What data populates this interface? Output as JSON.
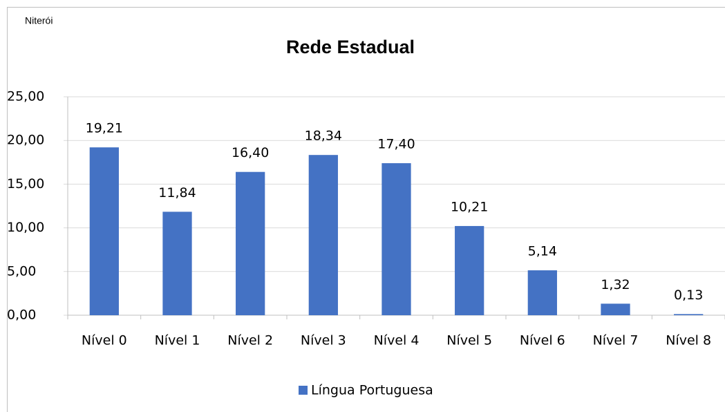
{
  "chart_data": {
    "type": "bar",
    "title": "Rede Estadual",
    "subtitle": "Niterói",
    "categories": [
      "Nível 0",
      "Nível 1",
      "Nível 2",
      "Nível 3",
      "Nível 4",
      "Nível 5",
      "Nível 6",
      "Nível 7",
      "Nível 8"
    ],
    "series": [
      {
        "name": "Língua Portuguesa",
        "color": "#4472c4",
        "values": [
          19.21,
          11.84,
          16.4,
          18.34,
          17.4,
          10.21,
          5.14,
          1.32,
          0.13
        ],
        "value_labels": [
          "19,21",
          "11,84",
          "16,40",
          "18,34",
          "17,40",
          "10,21",
          "5,14",
          "1,32",
          "0,13"
        ]
      }
    ],
    "ylim": [
      0,
      25
    ],
    "yticks": [
      {
        "value": 0,
        "label": "0,00"
      },
      {
        "value": 5,
        "label": "5,00"
      },
      {
        "value": 10,
        "label": "10,00"
      },
      {
        "value": 15,
        "label": "15,00"
      },
      {
        "value": 20,
        "label": "20,00"
      },
      {
        "value": 25,
        "label": "25,00"
      }
    ],
    "grid": true,
    "legend": "bottom"
  }
}
